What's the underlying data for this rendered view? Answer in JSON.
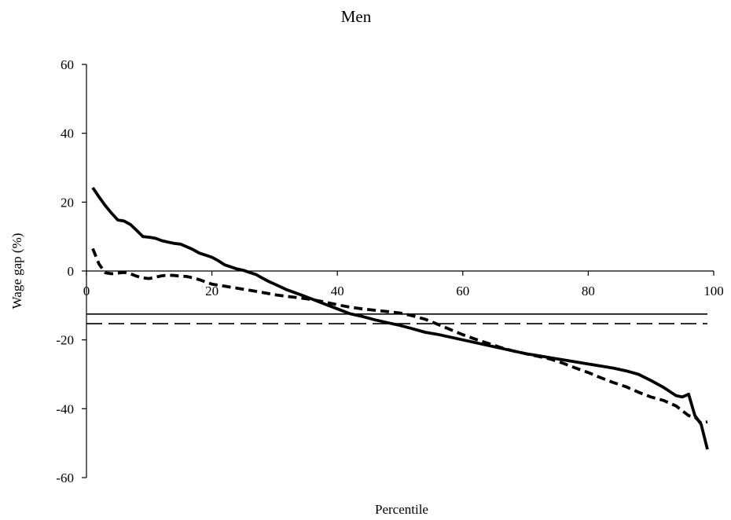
{
  "chart_data": {
    "type": "line",
    "title": "Men",
    "xlabel": "Percentile",
    "ylabel": "Wage gap (%)",
    "xlim": [
      0,
      100
    ],
    "ylim": [
      -60,
      60
    ],
    "xticks": [
      0,
      20,
      40,
      60,
      80,
      100
    ],
    "yticks": [
      60,
      40,
      20,
      0,
      -20,
      -40,
      -60
    ],
    "grid": false,
    "legend": "none",
    "series": [
      {
        "style": "solid-thick",
        "color": "#000000",
        "points": [
          [
            1,
            24.2
          ],
          [
            2,
            21.5
          ],
          [
            3,
            19.0
          ],
          [
            4,
            16.8
          ],
          [
            5,
            14.8
          ],
          [
            6,
            14.5
          ],
          [
            7,
            13.5
          ],
          [
            8,
            11.8
          ],
          [
            9,
            10.0
          ],
          [
            10,
            9.8
          ],
          [
            11,
            9.5
          ],
          [
            12,
            8.8
          ],
          [
            13,
            8.4
          ],
          [
            14,
            8.0
          ],
          [
            15,
            7.8
          ],
          [
            16,
            7.0
          ],
          [
            17,
            6.2
          ],
          [
            18,
            5.2
          ],
          [
            19,
            4.6
          ],
          [
            20,
            4.0
          ],
          [
            21,
            3.0
          ],
          [
            22,
            1.8
          ],
          [
            23,
            1.2
          ],
          [
            24,
            0.6
          ],
          [
            25,
            0.2
          ],
          [
            26,
            -0.4
          ],
          [
            27,
            -1.0
          ],
          [
            28,
            -2.0
          ],
          [
            29,
            -3.0
          ],
          [
            30,
            -3.8
          ],
          [
            32,
            -5.5
          ],
          [
            34,
            -6.8
          ],
          [
            36,
            -8.2
          ],
          [
            38,
            -9.6
          ],
          [
            40,
            -11.0
          ],
          [
            42,
            -12.4
          ],
          [
            44,
            -13.2
          ],
          [
            46,
            -14.2
          ],
          [
            48,
            -15.0
          ],
          [
            50,
            -15.8
          ],
          [
            52,
            -16.8
          ],
          [
            54,
            -17.8
          ],
          [
            56,
            -18.4
          ],
          [
            58,
            -19.2
          ],
          [
            60,
            -20.0
          ],
          [
            62,
            -20.8
          ],
          [
            64,
            -21.6
          ],
          [
            66,
            -22.4
          ],
          [
            68,
            -23.2
          ],
          [
            70,
            -24.0
          ],
          [
            72,
            -24.6
          ],
          [
            74,
            -25.2
          ],
          [
            76,
            -25.8
          ],
          [
            78,
            -26.4
          ],
          [
            80,
            -27.0
          ],
          [
            82,
            -27.6
          ],
          [
            84,
            -28.2
          ],
          [
            86,
            -29.0
          ],
          [
            88,
            -30.0
          ],
          [
            90,
            -31.8
          ],
          [
            92,
            -33.8
          ],
          [
            94,
            -36.2
          ],
          [
            95,
            -36.6
          ],
          [
            96,
            -35.8
          ],
          [
            97,
            -42.0
          ],
          [
            98,
            -44.5
          ],
          [
            99,
            -51.8
          ]
        ]
      },
      {
        "style": "short-dash-thick",
        "color": "#000000",
        "points": [
          [
            1,
            6.5
          ],
          [
            2,
            2.0
          ],
          [
            3,
            -0.5
          ],
          [
            4,
            -0.8
          ],
          [
            5,
            -0.6
          ],
          [
            6,
            -0.4
          ],
          [
            7,
            -0.8
          ],
          [
            8,
            -1.5
          ],
          [
            9,
            -2.0
          ],
          [
            10,
            -2.2
          ],
          [
            11,
            -1.8
          ],
          [
            12,
            -1.4
          ],
          [
            13,
            -1.2
          ],
          [
            14,
            -1.3
          ],
          [
            15,
            -1.5
          ],
          [
            16,
            -1.6
          ],
          [
            17,
            -2.0
          ],
          [
            18,
            -2.5
          ],
          [
            19,
            -3.2
          ],
          [
            20,
            -3.8
          ],
          [
            22,
            -4.4
          ],
          [
            24,
            -5.0
          ],
          [
            26,
            -5.6
          ],
          [
            28,
            -6.2
          ],
          [
            30,
            -6.9
          ],
          [
            32,
            -7.4
          ],
          [
            34,
            -7.8
          ],
          [
            36,
            -8.3
          ],
          [
            38,
            -9.0
          ],
          [
            40,
            -9.8
          ],
          [
            42,
            -10.5
          ],
          [
            44,
            -11.0
          ],
          [
            46,
            -11.4
          ],
          [
            48,
            -11.8
          ],
          [
            50,
            -12.2
          ],
          [
            52,
            -13.0
          ],
          [
            54,
            -14.0
          ],
          [
            56,
            -15.5
          ],
          [
            58,
            -17.0
          ],
          [
            60,
            -18.5
          ],
          [
            62,
            -19.8
          ],
          [
            64,
            -21.0
          ],
          [
            66,
            -22.2
          ],
          [
            68,
            -23.2
          ],
          [
            70,
            -24.0
          ],
          [
            72,
            -24.8
          ],
          [
            74,
            -25.6
          ],
          [
            76,
            -26.8
          ],
          [
            78,
            -28.2
          ],
          [
            80,
            -29.5
          ],
          [
            82,
            -31.0
          ],
          [
            84,
            -32.4
          ],
          [
            86,
            -33.6
          ],
          [
            88,
            -35.2
          ],
          [
            90,
            -36.6
          ],
          [
            92,
            -37.6
          ],
          [
            94,
            -39.2
          ],
          [
            96,
            -42.0
          ],
          [
            97,
            -42.4
          ],
          [
            98,
            -44.2
          ],
          [
            99,
            -43.8
          ]
        ]
      },
      {
        "style": "solid-thin",
        "color": "#000000",
        "points": [
          [
            0,
            -12.5
          ],
          [
            99,
            -12.5
          ]
        ]
      },
      {
        "style": "long-dash-thin",
        "color": "#000000",
        "points": [
          [
            0,
            -15.3
          ],
          [
            99,
            -15.3
          ]
        ]
      }
    ]
  }
}
